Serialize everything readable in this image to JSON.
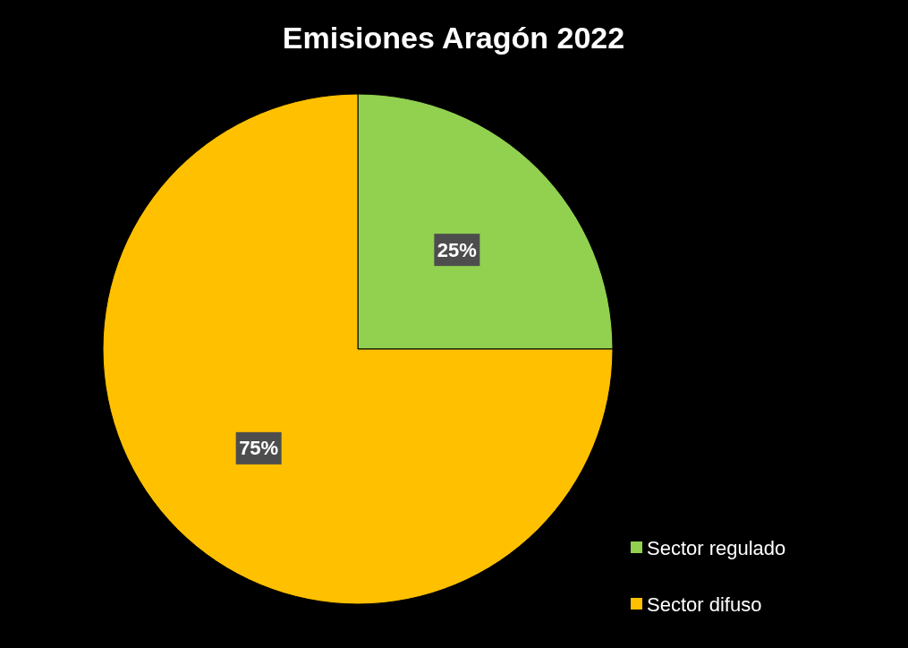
{
  "chart_data": {
    "type": "pie",
    "title": "Emisiones Aragón 2022",
    "categories": [
      "Sector regulado",
      "Sector difuso"
    ],
    "values": [
      25,
      75
    ],
    "colors": [
      "#92d050",
      "#ffc000"
    ],
    "value_labels": [
      "25%",
      "75%"
    ],
    "legend": "bottom right"
  }
}
